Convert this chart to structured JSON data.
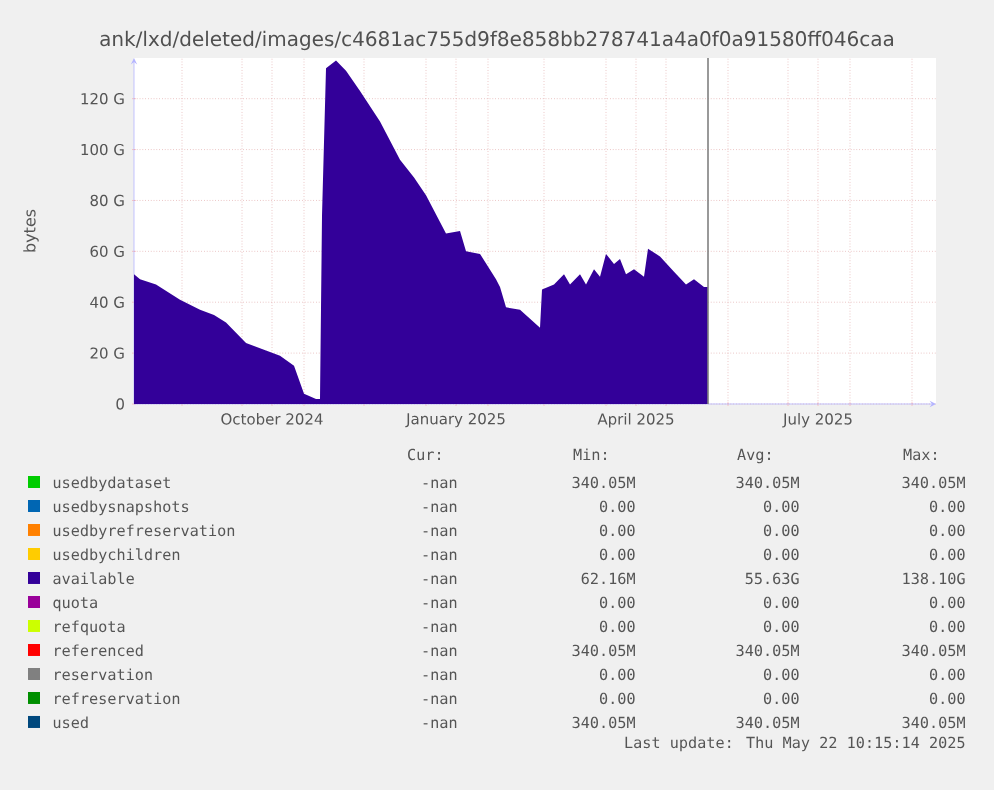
{
  "chart_data": {
    "type": "area",
    "title": "ank/lxd/deleted/images/c4681ac755d9f8e858bb278741a4a0f0a91580ff046caa",
    "ylabel": "bytes",
    "x": [
      "2024-08-08",
      "2024-08-11",
      "2024-08-19",
      "2024-08-31",
      "2024-09-10",
      "2024-09-17",
      "2024-09-23",
      "2024-10-03",
      "2024-10-13",
      "2024-10-20",
      "2024-10-27",
      "2024-11-01",
      "2024-11-07",
      "2024-11-09",
      "2024-11-10",
      "2024-11-12",
      "2024-11-17",
      "2024-11-22",
      "2024-11-29",
      "2024-12-09",
      "2024-12-19",
      "2024-12-26",
      "2025-01-01",
      "2025-01-11",
      "2025-01-18",
      "2025-01-21",
      "2025-01-28",
      "2025-02-05",
      "2025-02-07",
      "2025-02-10",
      "2025-02-17",
      "2025-02-27",
      "2025-02-28",
      "2025-03-06",
      "2025-03-11",
      "2025-03-14",
      "2025-03-19",
      "2025-03-22",
      "2025-03-26",
      "2025-03-29",
      "2025-04-01",
      "2025-04-05",
      "2025-04-08",
      "2025-04-11",
      "2025-04-15",
      "2025-04-20",
      "2025-04-22",
      "2025-04-28",
      "2025-05-05",
      "2025-05-11",
      "2025-05-15",
      "2025-05-20",
      "2025-05-22"
    ],
    "series": [
      {
        "name": "usedbydataset",
        "color": "#00cc00",
        "values": [
          null,
          null,
          null,
          null,
          null,
          null,
          null,
          null,
          null,
          null,
          null,
          null,
          null,
          null,
          null,
          null,
          null,
          null,
          null,
          null,
          null,
          null,
          null,
          null,
          null,
          null,
          null,
          null,
          null,
          null,
          null,
          null,
          null,
          null,
          null,
          null,
          null,
          null,
          null,
          null,
          null,
          null,
          null,
          null,
          null,
          null,
          null,
          null,
          null,
          null,
          null,
          null,
          null
        ]
      },
      {
        "name": "usedbysnapshots",
        "color": "#0066b3",
        "values": [
          null,
          null,
          null,
          null,
          null,
          null,
          null,
          null,
          null,
          null,
          null,
          null,
          null,
          null,
          null,
          null,
          null,
          null,
          null,
          null,
          null,
          null,
          null,
          null,
          null,
          null,
          null,
          null,
          null,
          null,
          null,
          null,
          null,
          null,
          null,
          null,
          null,
          null,
          null,
          null,
          null,
          null,
          null,
          null,
          null,
          null,
          null,
          null,
          null,
          null,
          null,
          null,
          null
        ]
      },
      {
        "name": "usedbyrefreservation",
        "color": "#ff8000",
        "values": [
          null,
          null,
          null,
          null,
          null,
          null,
          null,
          null,
          null,
          null,
          null,
          null,
          null,
          null,
          null,
          null,
          null,
          null,
          null,
          null,
          null,
          null,
          null,
          null,
          null,
          null,
          null,
          null,
          null,
          null,
          null,
          null,
          null,
          null,
          null,
          null,
          null,
          null,
          null,
          null,
          null,
          null,
          null,
          null,
          null,
          null,
          null,
          null,
          null,
          null,
          null,
          null,
          null
        ]
      },
      {
        "name": "usedbychildren",
        "color": "#ffcc00",
        "values": [
          null,
          null,
          null,
          null,
          null,
          null,
          null,
          null,
          null,
          null,
          null,
          null,
          null,
          null,
          null,
          null,
          null,
          null,
          null,
          null,
          null,
          null,
          null,
          null,
          null,
          null,
          null,
          null,
          null,
          null,
          null,
          null,
          null,
          null,
          null,
          null,
          null,
          null,
          null,
          null,
          null,
          null,
          null,
          null,
          null,
          null,
          null,
          null,
          null,
          null,
          null,
          null,
          null
        ]
      },
      {
        "name": "available",
        "color": "#330099",
        "values": [
          51,
          49,
          47,
          41,
          37,
          35,
          32,
          24,
          21,
          19,
          15,
          4,
          2,
          2,
          74,
          132,
          135,
          131,
          123,
          111,
          96,
          89,
          82,
          67,
          68,
          60,
          59,
          49,
          46,
          38,
          37,
          30,
          45,
          47,
          51,
          47,
          51,
          47,
          53,
          50,
          59,
          55,
          57,
          51,
          53,
          50,
          61,
          58,
          52,
          47,
          49,
          46,
          46
        ]
      },
      {
        "name": "quota",
        "color": "#990099",
        "values": [
          null,
          null,
          null,
          null,
          null,
          null,
          null,
          null,
          null,
          null,
          null,
          null,
          null,
          null,
          null,
          null,
          null,
          null,
          null,
          null,
          null,
          null,
          null,
          null,
          null,
          null,
          null,
          null,
          null,
          null,
          null,
          null,
          null,
          null,
          null,
          null,
          null,
          null,
          null,
          null,
          null,
          null,
          null,
          null,
          null,
          null,
          null,
          null,
          null,
          null,
          null,
          null,
          null
        ]
      },
      {
        "name": "refquota",
        "color": "#ccff00",
        "values": [
          null,
          null,
          null,
          null,
          null,
          null,
          null,
          null,
          null,
          null,
          null,
          null,
          null,
          null,
          null,
          null,
          null,
          null,
          null,
          null,
          null,
          null,
          null,
          null,
          null,
          null,
          null,
          null,
          null,
          null,
          null,
          null,
          null,
          null,
          null,
          null,
          null,
          null,
          null,
          null,
          null,
          null,
          null,
          null,
          null,
          null,
          null,
          null,
          null,
          null,
          null,
          null,
          null
        ]
      },
      {
        "name": "referenced",
        "color": "#ff0000",
        "values": [
          null,
          null,
          null,
          null,
          null,
          null,
          null,
          null,
          null,
          null,
          null,
          null,
          null,
          null,
          null,
          null,
          null,
          null,
          null,
          null,
          null,
          null,
          null,
          null,
          null,
          null,
          null,
          null,
          null,
          null,
          null,
          null,
          null,
          null,
          null,
          null,
          null,
          null,
          null,
          null,
          null,
          null,
          null,
          null,
          null,
          null,
          null,
          null,
          null,
          null,
          null,
          null,
          null
        ]
      },
      {
        "name": "reservation",
        "color": "#808080",
        "values": [
          null,
          null,
          null,
          null,
          null,
          null,
          null,
          null,
          null,
          null,
          null,
          null,
          null,
          null,
          null,
          null,
          null,
          null,
          null,
          null,
          null,
          null,
          null,
          null,
          null,
          null,
          null,
          null,
          null,
          null,
          null,
          null,
          null,
          null,
          null,
          null,
          null,
          null,
          null,
          null,
          null,
          null,
          null,
          null,
          null,
          null,
          null,
          null,
          null,
          null,
          null,
          null,
          null
        ]
      },
      {
        "name": "refreservation",
        "color": "#008f00",
        "values": [
          null,
          null,
          null,
          null,
          null,
          null,
          null,
          null,
          null,
          null,
          null,
          null,
          null,
          null,
          null,
          null,
          null,
          null,
          null,
          null,
          null,
          null,
          null,
          null,
          null,
          null,
          null,
          null,
          null,
          null,
          null,
          null,
          null,
          null,
          null,
          null,
          null,
          null,
          null,
          null,
          null,
          null,
          null,
          null,
          null,
          null,
          null,
          null,
          null,
          null,
          null,
          null,
          null
        ]
      },
      {
        "name": "used",
        "color": "#00487d",
        "values": [
          null,
          null,
          null,
          null,
          null,
          null,
          null,
          null,
          null,
          null,
          null,
          null,
          null,
          null,
          null,
          null,
          null,
          null,
          null,
          null,
          null,
          null,
          null,
          null,
          null,
          null,
          null,
          null,
          null,
          null,
          null,
          null,
          null,
          null,
          null,
          null,
          null,
          null,
          null,
          null,
          null,
          null,
          null,
          null,
          null,
          null,
          null,
          null,
          null,
          null,
          null,
          null,
          null
        ]
      }
    ],
    "xlim": [
      "2024-08-08",
      "2025-09-13"
    ],
    "xticks": [
      {
        "value": "2024-09-01",
        "label": null
      },
      {
        "value": "2024-10-01",
        "label": null
      },
      {
        "value": "2024-10-16",
        "label": "October 2024"
      },
      {
        "value": "2024-11-01",
        "label": null
      },
      {
        "value": "2024-12-01",
        "label": null
      },
      {
        "value": "2025-01-01",
        "label": null
      },
      {
        "value": "2025-01-16",
        "label": "January 2025"
      },
      {
        "value": "2025-02-01",
        "label": null
      },
      {
        "value": "2025-03-01",
        "label": null
      },
      {
        "value": "2025-04-01",
        "label": null
      },
      {
        "value": "2025-04-16",
        "label": "April 2025"
      },
      {
        "value": "2025-05-01",
        "label": null
      },
      {
        "value": "2025-06-01",
        "label": null
      },
      {
        "value": "2025-07-01",
        "label": null
      },
      {
        "value": "2025-07-16",
        "label": "July 2025"
      },
      {
        "value": "2025-08-01",
        "label": null
      },
      {
        "value": "2025-09-01",
        "label": null
      }
    ],
    "ylim": [
      0,
      136
    ],
    "yticks": [
      0,
      {
        "value": 20,
        "label": "20 G"
      },
      {
        "value": 40,
        "label": "40 G"
      },
      {
        "value": 60,
        "label": "60 G"
      },
      {
        "value": 80,
        "label": "80 G"
      },
      {
        "value": 100,
        "label": "100 G"
      },
      {
        "value": 120,
        "label": "120 G"
      }
    ],
    "ref_lines": [
      {
        "axis": "x",
        "value": "2025-05-22",
        "color": "#808080"
      }
    ],
    "grid": true,
    "legend": "bottom",
    "marker": "none",
    "annotations": [
      "Cur:",
      "Min:",
      "Avg:",
      "Max:",
      "-nan",
      "340.05M",
      "340.05M",
      "340.05M",
      "-nan",
      "0.00",
      "0.00",
      "0.00",
      "-nan",
      "0.00",
      "0.00",
      "0.00",
      "-nan",
      "0.00",
      "0.00",
      "0.00",
      "-nan",
      "62.16M",
      "55.63G",
      "138.10G",
      "-nan",
      "0.00",
      "0.00",
      "0.00",
      "-nan",
      "0.00",
      "0.00",
      "0.00",
      "-nan",
      "340.05M",
      "340.05M",
      "340.05M",
      "-nan",
      "0.00",
      "0.00",
      "0.00",
      "-nan",
      "0.00",
      "0.00",
      "0.00",
      "-nan",
      "340.05M",
      "340.05M",
      "340.05M",
      "Last update: Thu May 22 10:15:14 2025"
    ]
  }
}
